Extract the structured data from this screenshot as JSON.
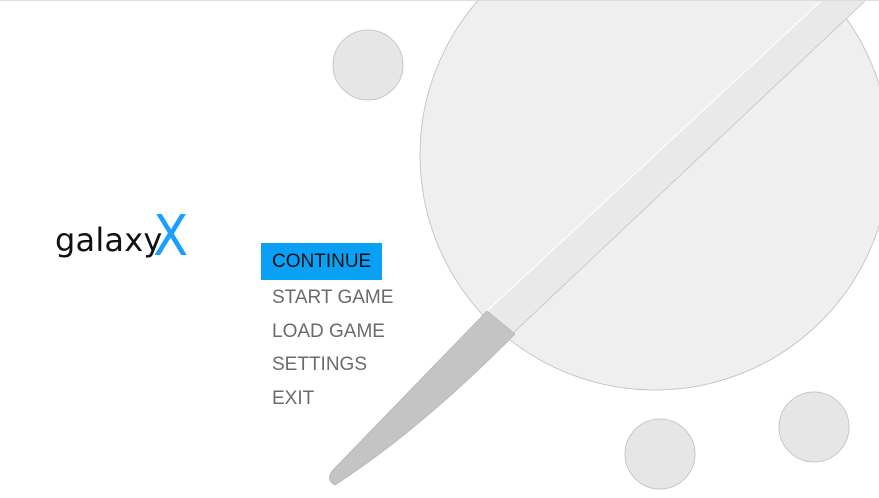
{
  "logo": {
    "word": "galaxy",
    "mark": "X",
    "mark_color": "#1a9fff"
  },
  "menu": {
    "items": [
      {
        "label": "CONTINUE",
        "selected": true
      },
      {
        "label": "START GAME",
        "selected": false
      },
      {
        "label": "LOAD GAME",
        "selected": false
      },
      {
        "label": "SETTINGS",
        "selected": false
      },
      {
        "label": "EXIT",
        "selected": false
      }
    ],
    "highlight_color": "#0aa0f5",
    "text_color": "#6b6b6b"
  },
  "background": {
    "planet_color": "#efefef",
    "moon_color": "#e6e6e6",
    "blade_color": "#c4c4c4",
    "outline_color": "#bdbdbd"
  }
}
